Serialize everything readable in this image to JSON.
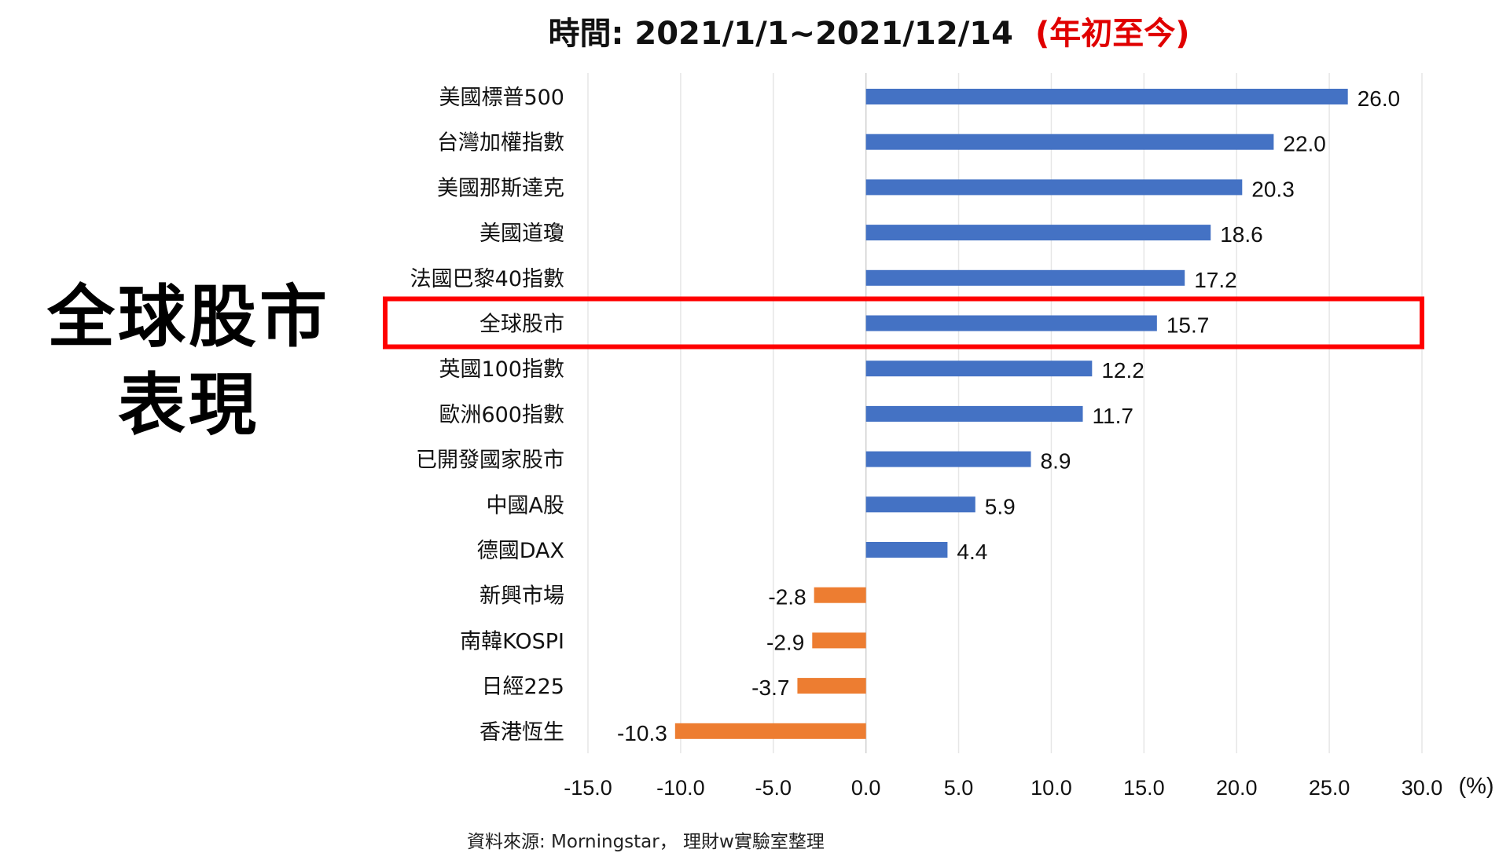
{
  "title": {
    "main": "時間: 2021/1/1~2021/12/14",
    "highlight": "(年初至今)"
  },
  "side_heading": {
    "line1": "全球股市",
    "line2": "表現"
  },
  "source": "資料來源: Morningstar， 理財w實驗室整理",
  "chart_data": {
    "type": "bar",
    "orientation": "horizontal",
    "categories": [
      "美國標普500",
      "台灣加權指數",
      "美國那斯達克",
      "美國道瓊",
      "法國巴黎40指數",
      "全球股市",
      "英國100指數",
      "歐洲600指數",
      "已開發國家股市",
      "中國A股",
      "德國DAX",
      "新興市場",
      "南韓KOSPI",
      "日經225",
      "香港恆生"
    ],
    "values": [
      26.0,
      22.0,
      20.3,
      18.6,
      17.2,
      15.7,
      12.2,
      11.7,
      8.9,
      5.9,
      4.4,
      -2.8,
      -2.9,
      -3.7,
      -10.3
    ],
    "xlim": [
      -15,
      30
    ],
    "xticks": [
      "-15.0",
      "-10.0",
      "-5.0",
      "0.0",
      "5.0",
      "10.0",
      "15.0",
      "20.0",
      "25.0",
      "30.0"
    ],
    "xunit": "(%)",
    "grid": "vertical",
    "highlighted_category": "全球股市",
    "colors": {
      "positive": "#4472c4",
      "negative": "#ed7d31",
      "highlight_box": "#ff0000",
      "grid": "#e6e6e6"
    }
  }
}
